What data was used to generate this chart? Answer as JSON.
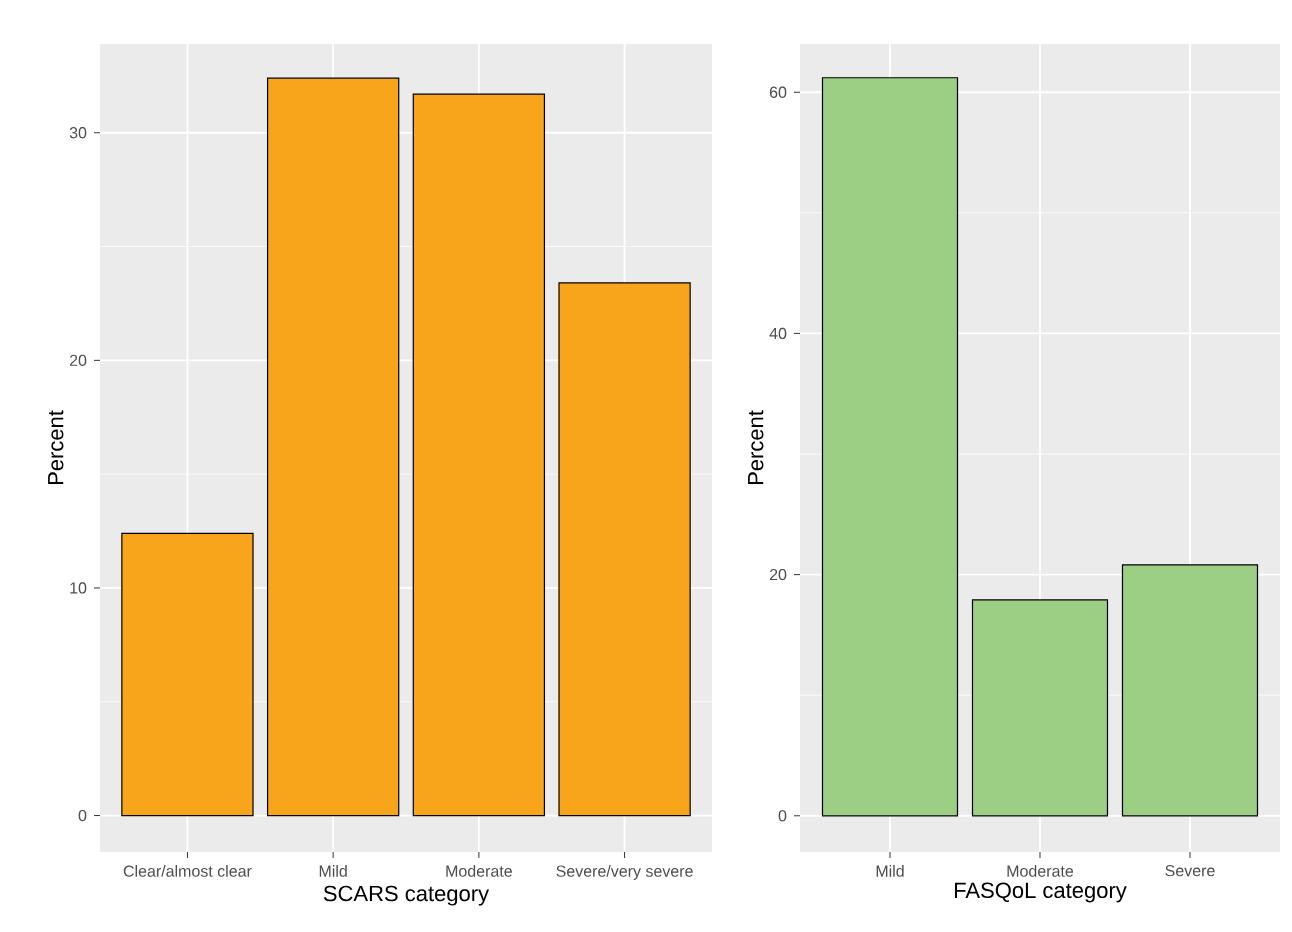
{
  "chart_data": [
    {
      "type": "bar",
      "categories": [
        "Clear/almost clear",
        "Mild",
        "Moderate",
        "Severe/very severe"
      ],
      "values": [
        12.4,
        32.4,
        31.7,
        23.4
      ],
      "color": "#f8a51c",
      "xlabel": "SCARS category",
      "ylabel": "Percent",
      "ylim": [
        -1.6,
        33.9
      ],
      "yticks": [
        0,
        10,
        20,
        30
      ],
      "grid": true
    },
    {
      "type": "bar",
      "categories": [
        "Mild",
        "Moderate",
        "Severe"
      ],
      "values": [
        61.2,
        17.9,
        20.8
      ],
      "color": "#9ccf84",
      "xlabel": "FASQoL category",
      "ylabel": "Percent",
      "ylim": [
        -3.0,
        64.0
      ],
      "yticks": [
        0,
        20,
        40,
        60
      ],
      "grid": true
    }
  ]
}
